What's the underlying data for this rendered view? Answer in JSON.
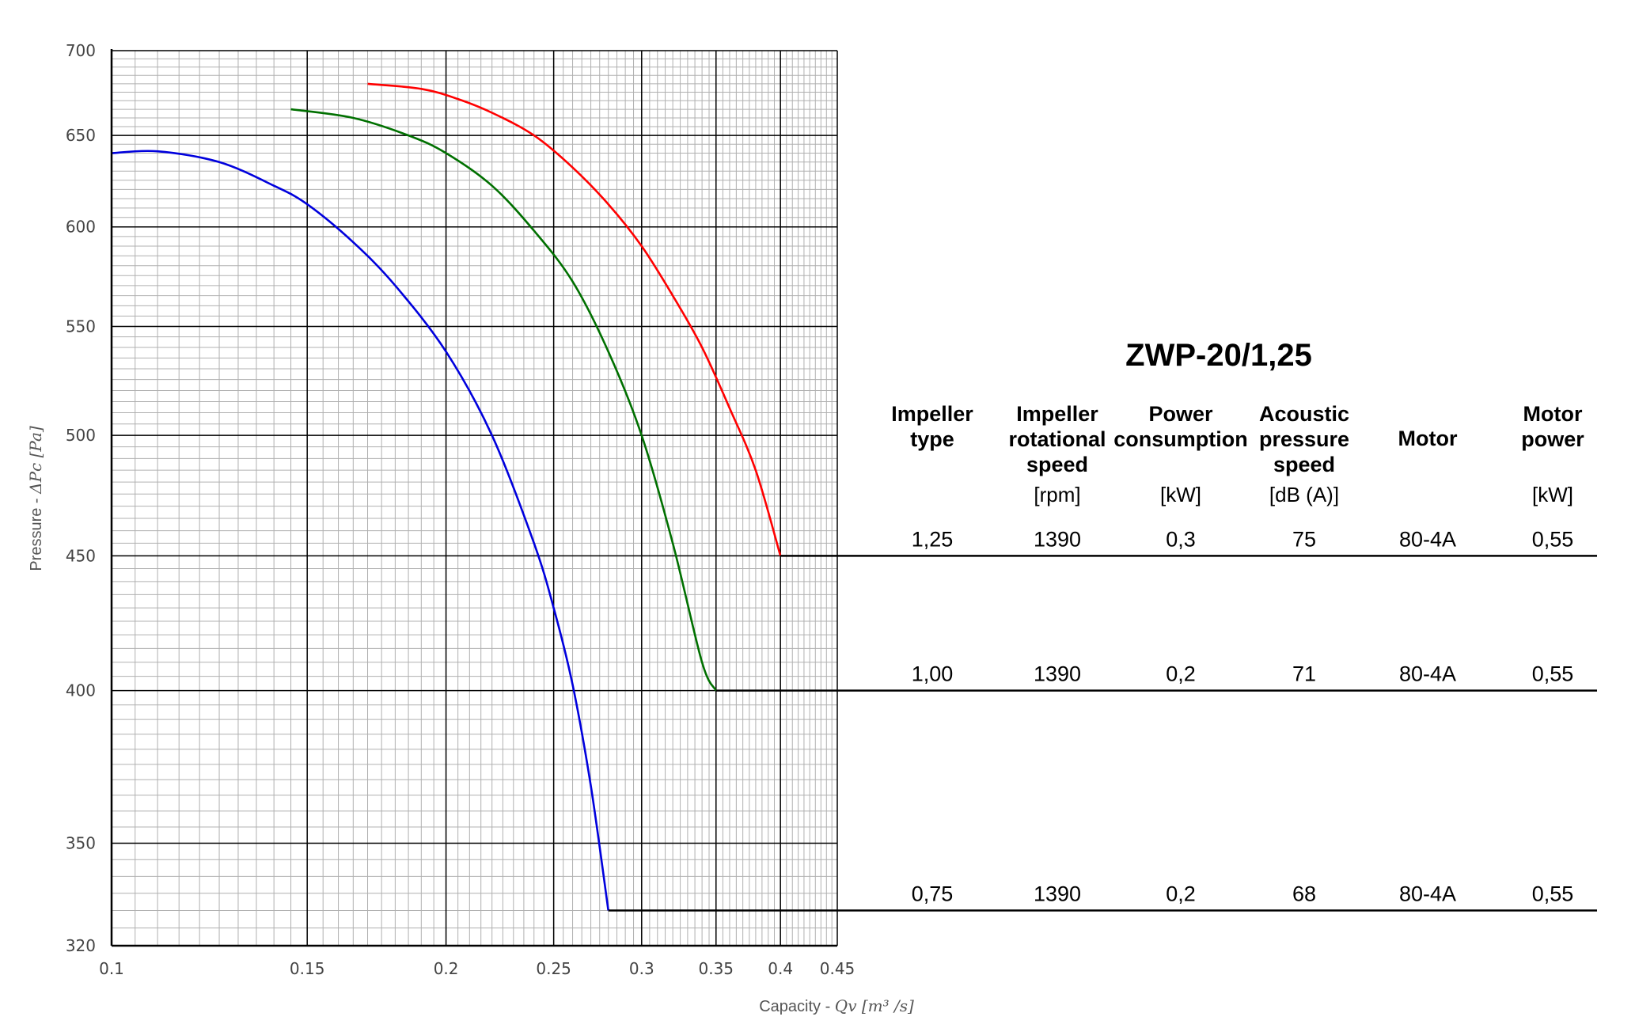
{
  "chart_data": {
    "type": "line",
    "title": "ZWP-20/1,25",
    "xlabel_prefix": "Capacity - ",
    "xlabel_math": "Qv [m³ /s]",
    "ylabel_prefix": "Pressure - ",
    "ylabel_math": "ΔPc [Pa]",
    "x_scale": "log",
    "y_scale": "log",
    "xlim": [
      0.1,
      0.45
    ],
    "ylim": [
      320,
      700
    ],
    "grid": true,
    "x_ticks": [
      0.1,
      0.15,
      0.2,
      0.25,
      0.3,
      0.35,
      0.4,
      0.45
    ],
    "x_tick_labels": [
      "0.1",
      "0.15",
      "0.2",
      "0.25",
      "0.3",
      "0.35",
      "0.4",
      "0.45"
    ],
    "y_ticks": [
      320,
      350,
      400,
      450,
      500,
      550,
      600,
      650,
      700
    ],
    "y_tick_labels": [
      "320",
      "350",
      "400",
      "450",
      "500",
      "550",
      "600",
      "650",
      "700"
    ],
    "series": [
      {
        "color": "#ff0000",
        "x": [
          0.17,
          0.19,
          0.205,
          0.22,
          0.24,
          0.26,
          0.28,
          0.3,
          0.32,
          0.34,
          0.36,
          0.38,
          0.4
        ],
        "y": [
          680,
          677,
          671,
          663,
          650,
          632,
          612,
          590,
          565,
          540,
          512,
          485,
          450
        ],
        "tail_to_y": 450
      },
      {
        "color": "#007000",
        "x": [
          0.145,
          0.165,
          0.185,
          0.2,
          0.22,
          0.24,
          0.26,
          0.28,
          0.3,
          0.32,
          0.34,
          0.35
        ],
        "y": [
          665,
          660,
          650,
          640,
          622,
          598,
          572,
          538,
          500,
          455,
          410,
          400
        ],
        "tail_to_y": 400
      },
      {
        "color": "#0000dd",
        "x": [
          0.1,
          0.11,
          0.125,
          0.14,
          0.15,
          0.165,
          0.18,
          0.2,
          0.22,
          0.24,
          0.25,
          0.26,
          0.27,
          0.28
        ],
        "y": [
          640,
          641,
          635,
          622,
          612,
          592,
          570,
          538,
          500,
          455,
          430,
          402,
          368,
          330
        ],
        "tail_to_y": 330
      }
    ]
  },
  "table": {
    "headers": [
      {
        "lines": [
          "Impeller",
          "type"
        ],
        "unit": ""
      },
      {
        "lines": [
          "Impeller",
          "rotational",
          "speed"
        ],
        "unit": "[rpm]"
      },
      {
        "lines": [
          "Power",
          "consumption"
        ],
        "unit": "[kW]"
      },
      {
        "lines": [
          "Acoustic",
          "pressure",
          "speed"
        ],
        "unit": "[dB (A)]"
      },
      {
        "lines": [
          "Motor"
        ],
        "unit": ""
      },
      {
        "lines": [
          "Motor",
          "power"
        ],
        "unit": "[kW]"
      }
    ],
    "rows": [
      {
        "pressure": 450,
        "values": [
          "1,25",
          "1390",
          "0,3",
          "75",
          "80-4A",
          "0,55"
        ]
      },
      {
        "pressure": 400,
        "values": [
          "1,00",
          "1390",
          "0,2",
          "71",
          "80-4A",
          "0,55"
        ]
      },
      {
        "pressure": 330,
        "values": [
          "0,75",
          "1390",
          "0,2",
          "68",
          "80-4A",
          "0,55"
        ]
      }
    ]
  }
}
